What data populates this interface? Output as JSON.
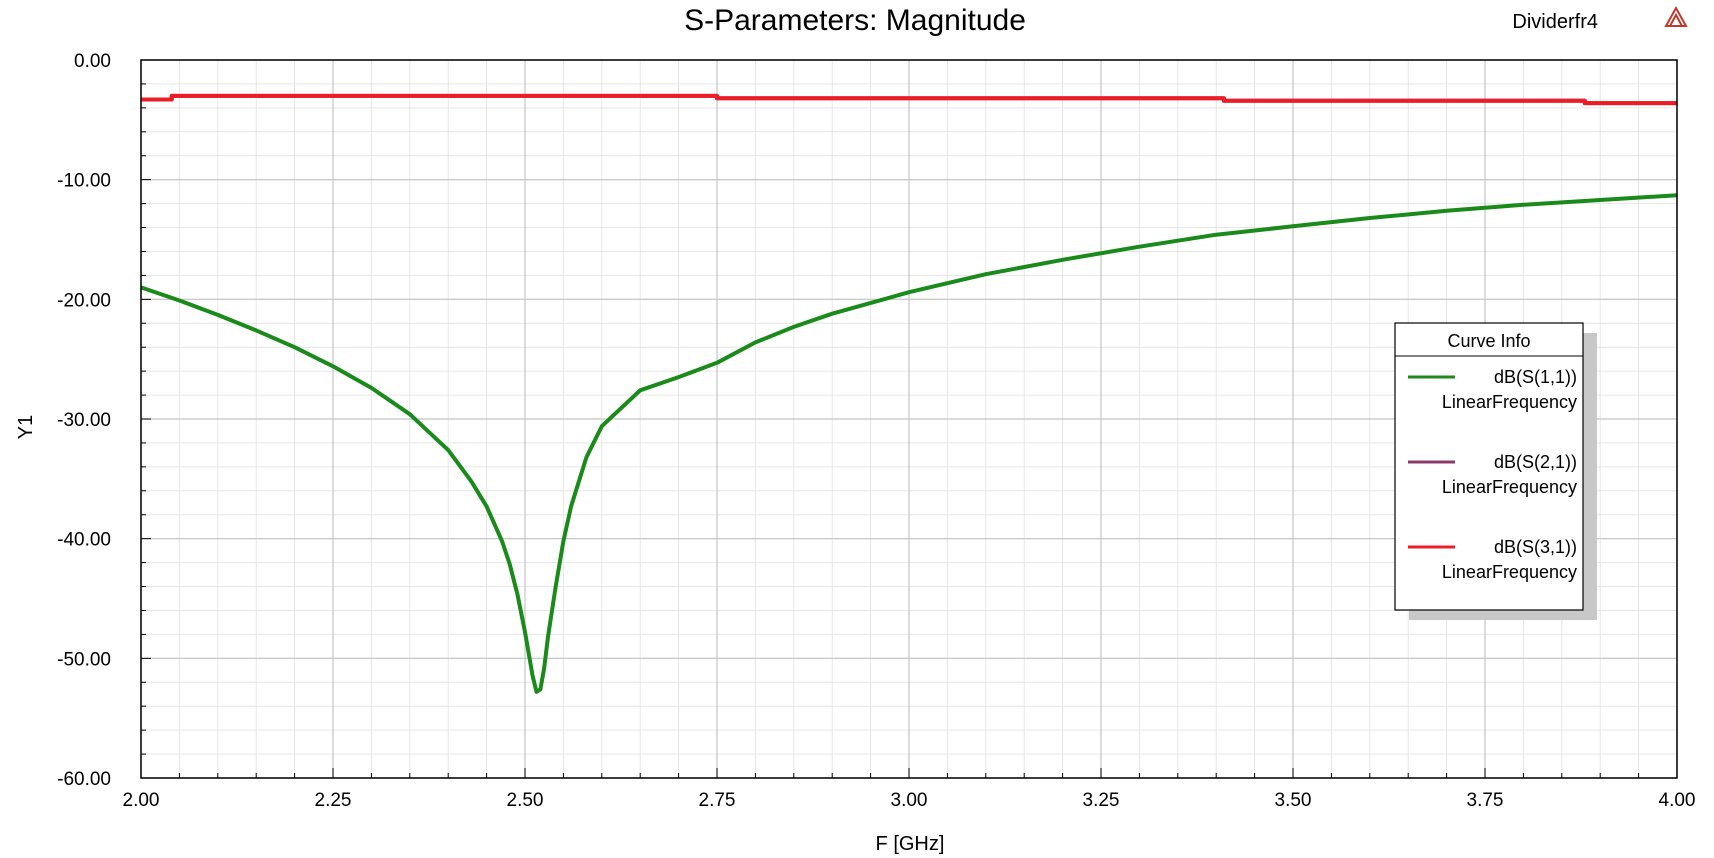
{
  "chart_data": {
    "type": "line",
    "title": "S-Parameters: Magnitude",
    "design_name": "Dividerfr4",
    "xlabel": "F [GHz]",
    "ylabel": "Y1",
    "xlim": [
      2.0,
      4.0
    ],
    "ylim": [
      -60,
      0
    ],
    "xticks": [
      2.0,
      2.25,
      2.5,
      2.75,
      3.0,
      3.25,
      3.5,
      3.75,
      4.0
    ],
    "xtick_labels": [
      "2.00",
      "2.25",
      "2.50",
      "2.75",
      "3.00",
      "3.25",
      "3.50",
      "3.75",
      "4.00"
    ],
    "yticks": [
      0,
      -10,
      -20,
      -30,
      -40,
      -50,
      -60
    ],
    "ytick_labels": [
      "0.00",
      "-10.00",
      "-20.00",
      "-30.00",
      "-40.00",
      "-50.00",
      "-60.00"
    ],
    "grid": true,
    "legend": {
      "title": "Curve Info",
      "placement": "right"
    },
    "series": [
      {
        "name": "dB(S(1,1))",
        "sub": "LinearFrequency",
        "color": "#1a8a1a",
        "x": [
          2.0,
          2.05,
          2.1,
          2.15,
          2.2,
          2.25,
          2.3,
          2.35,
          2.4,
          2.43,
          2.45,
          2.47,
          2.48,
          2.49,
          2.5,
          2.51,
          2.515,
          2.52,
          2.525,
          2.53,
          2.54,
          2.55,
          2.56,
          2.58,
          2.6,
          2.65,
          2.7,
          2.75,
          2.8,
          2.85,
          2.9,
          3.0,
          3.1,
          3.2,
          3.3,
          3.4,
          3.5,
          3.6,
          3.7,
          3.8,
          3.9,
          4.0
        ],
        "y": [
          -19.0,
          -20.1,
          -21.3,
          -22.6,
          -24.0,
          -25.6,
          -27.4,
          -29.6,
          -32.6,
          -35.2,
          -37.3,
          -40.2,
          -42.1,
          -44.6,
          -47.8,
          -51.5,
          -52.8,
          -52.6,
          -50.8,
          -48.2,
          -44.0,
          -40.2,
          -37.3,
          -33.2,
          -30.6,
          -27.6,
          -26.5,
          -25.3,
          -23.6,
          -22.3,
          -21.2,
          -19.4,
          -17.9,
          -16.7,
          -15.6,
          -14.6,
          -13.9,
          -13.2,
          -12.6,
          -12.1,
          -11.7,
          -11.3
        ]
      },
      {
        "name": "dB(S(2,1))",
        "sub": "LinearFrequency",
        "color": "#8b3a6b",
        "x": [
          2.0,
          2.04,
          2.04,
          2.75,
          2.75,
          3.41,
          3.41,
          3.88,
          3.88,
          4.0
        ],
        "y": [
          -3.3,
          -3.3,
          -3.0,
          -3.0,
          -3.2,
          -3.2,
          -3.4,
          -3.4,
          -3.6,
          -3.6
        ]
      },
      {
        "name": "dB(S(3,1))",
        "sub": "LinearFrequency",
        "color": "#ee1c25",
        "x": [
          2.0,
          2.04,
          2.04,
          2.75,
          2.75,
          3.41,
          3.41,
          3.88,
          3.88,
          4.0
        ],
        "y": [
          -3.3,
          -3.3,
          -3.0,
          -3.0,
          -3.2,
          -3.2,
          -3.4,
          -3.4,
          -3.6,
          -3.6
        ]
      }
    ]
  }
}
